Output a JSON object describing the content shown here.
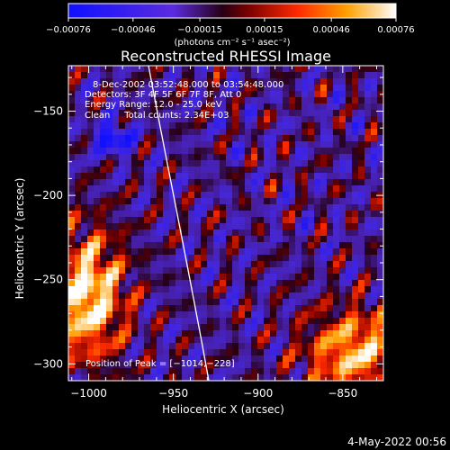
{
  "chart_data": {
    "type": "heatmap",
    "title": "Reconstructed RHESSI Image",
    "xlabel": "Heliocentric X (arcsec)",
    "ylabel": "Heliocentric Y (arcsec)",
    "xlim": [
      -1012,
      -826
    ],
    "ylim": [
      -310,
      -123
    ],
    "xticks": [
      -1000,
      -950,
      -900,
      -850
    ],
    "xtick_labels": [
      "−1000",
      "−950",
      "−900",
      "−850"
    ],
    "yticks": [
      -300,
      -250,
      -200,
      -150
    ],
    "ytick_labels": [
      "−300",
      "−250",
      "−200",
      "−150"
    ],
    "colorbar": {
      "min": -0.00076,
      "max": 0.00076,
      "ticks": [
        -0.00076,
        -0.00046,
        -0.00015,
        0.00015,
        0.00046,
        0.00076
      ],
      "tick_labels": [
        "−0.00076",
        "−0.00046",
        "−0.00015",
        "0.00015",
        "0.00046",
        "0.00076"
      ],
      "unit_label": "(photons cm⁻² s⁻¹ asec⁻²)"
    },
    "annotations": [
      "8-Dec-2002 03:52:48.000 to 03:54:48.000",
      "Detectors: 3F 4F 5F 6F 7F 8F, Att 0",
      "Energy Range: 12.0 - 25.0 keV",
      "Clean     Total counts: 2.34E+03"
    ],
    "peak_label": "Position of Peak = [−1014,−228]",
    "grid": false
  },
  "footer_timestamp": "4-May-2022 00:56"
}
